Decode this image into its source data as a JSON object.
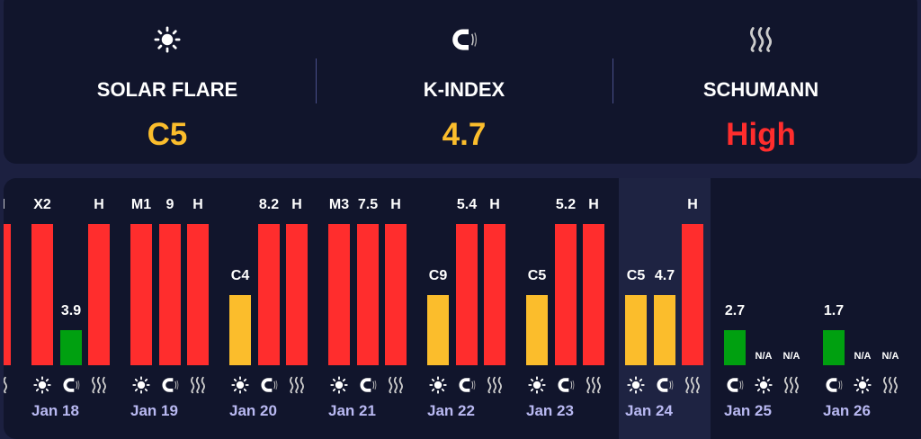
{
  "summary": [
    {
      "icon": "sun-icon",
      "label": "SOLAR FLARE",
      "value": "C5",
      "color": "#fbbd2c"
    },
    {
      "icon": "magnet-icon",
      "label": "K-INDEX",
      "value": "4.7",
      "color": "#fbbd2c"
    },
    {
      "icon": "waves-icon",
      "label": "SCHUMANN",
      "value": "High",
      "color": "#ff2d2d"
    }
  ],
  "colors": {
    "high": "#ff2d2d",
    "moderate": "#fbbd2c",
    "low": "#00a010",
    "highlight": "#1e2342"
  },
  "levels": {
    "high": 1.0,
    "moderate": 0.5,
    "low": 0.25,
    "na": 0
  },
  "days": [
    {
      "date": "",
      "bars": [
        {
          "type": "schumann",
          "label": "H",
          "level": "high"
        }
      ],
      "partial": true
    },
    {
      "date": "Jan 18",
      "bars": [
        {
          "type": "solar",
          "label": "X2",
          "level": "high"
        },
        {
          "type": "kindex",
          "label": "3.9",
          "level": "low"
        },
        {
          "type": "schumann",
          "label": "H",
          "level": "high"
        }
      ]
    },
    {
      "date": "Jan 19",
      "bars": [
        {
          "type": "solar",
          "label": "M1",
          "level": "high"
        },
        {
          "type": "kindex",
          "label": "9",
          "level": "high"
        },
        {
          "type": "schumann",
          "label": "H",
          "level": "high"
        }
      ]
    },
    {
      "date": "Jan 20",
      "bars": [
        {
          "type": "solar",
          "label": "C4",
          "level": "moderate"
        },
        {
          "type": "kindex",
          "label": "8.2",
          "level": "high"
        },
        {
          "type": "schumann",
          "label": "H",
          "level": "high"
        }
      ]
    },
    {
      "date": "Jan 21",
      "bars": [
        {
          "type": "solar",
          "label": "M3",
          "level": "high"
        },
        {
          "type": "kindex",
          "label": "7.5",
          "level": "high"
        },
        {
          "type": "schumann",
          "label": "H",
          "level": "high"
        }
      ]
    },
    {
      "date": "Jan 22",
      "bars": [
        {
          "type": "solar",
          "label": "C9",
          "level": "moderate"
        },
        {
          "type": "kindex",
          "label": "5.4",
          "level": "high"
        },
        {
          "type": "schumann",
          "label": "H",
          "level": "high"
        }
      ]
    },
    {
      "date": "Jan 23",
      "bars": [
        {
          "type": "solar",
          "label": "C5",
          "level": "moderate"
        },
        {
          "type": "kindex",
          "label": "5.2",
          "level": "high"
        },
        {
          "type": "schumann",
          "label": "H",
          "level": "high"
        }
      ]
    },
    {
      "date": "Jan 24",
      "selected": true,
      "bars": [
        {
          "type": "solar",
          "label": "C5",
          "level": "moderate"
        },
        {
          "type": "kindex",
          "label": "4.7",
          "level": "moderate"
        },
        {
          "type": "schumann",
          "label": "H",
          "level": "high"
        }
      ]
    },
    {
      "date": "Jan 25",
      "bars": [
        {
          "type": "kindex",
          "label": "2.7",
          "level": "low"
        },
        {
          "type": "solar",
          "label": "N/A",
          "level": "na"
        },
        {
          "type": "schumann",
          "label": "N/A",
          "level": "na"
        }
      ]
    },
    {
      "date": "Jan 26",
      "bars": [
        {
          "type": "kindex",
          "label": "1.7",
          "level": "low"
        },
        {
          "type": "solar",
          "label": "N/A",
          "level": "na"
        },
        {
          "type": "schumann",
          "label": "N/A",
          "level": "na"
        }
      ]
    }
  ]
}
